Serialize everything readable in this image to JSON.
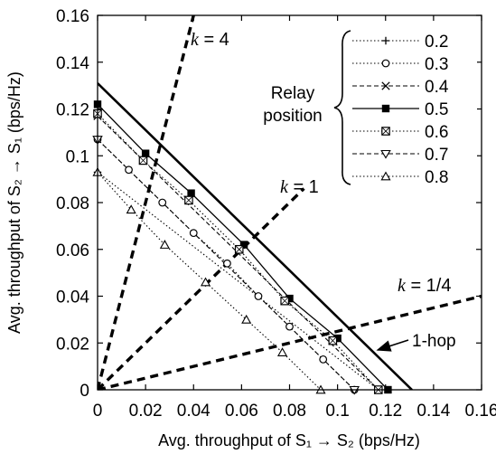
{
  "chart_data": {
    "type": "line",
    "xlabel": "Avg. throughput of S₁ → S₂ (bps/Hz)",
    "ylabel": "Avg. throughput of S₂ → S₁ (bps/Hz)",
    "xlim": [
      0,
      0.16
    ],
    "ylim": [
      0,
      0.16
    ],
    "xticks": [
      "0",
      "0.02",
      "0.04",
      "0.06",
      "0.08",
      "0.1",
      "0.12",
      "0.14",
      "0.16"
    ],
    "yticks": [
      "0",
      "0.02",
      "0.04",
      "0.06",
      "0.08",
      "0.1",
      "0.12",
      "0.14",
      "0.16"
    ],
    "grid": false,
    "legend_title": "Relay position",
    "legend_position": "top-right",
    "series": [
      {
        "name": "0.2",
        "marker": "plus",
        "style": "dotted",
        "points": [
          [
            0,
            0.093
          ],
          [
            0.117,
            0
          ]
        ]
      },
      {
        "name": "0.3",
        "marker": "circle",
        "style": "dotted",
        "points": [
          [
            0,
            0.107
          ],
          [
            0.013,
            0.094
          ],
          [
            0.027,
            0.08
          ],
          [
            0.04,
            0.067
          ],
          [
            0.054,
            0.054
          ],
          [
            0.067,
            0.04
          ],
          [
            0.08,
            0.027
          ],
          [
            0.094,
            0.013
          ],
          [
            0.107,
            0
          ]
        ]
      },
      {
        "name": "0.4",
        "marker": "cross",
        "style": "dashed",
        "points": [
          [
            0,
            0.117
          ],
          [
            0.117,
            0
          ]
        ]
      },
      {
        "name": "0.5",
        "marker": "square-filled",
        "style": "solid",
        "points": [
          [
            0,
            0.122
          ],
          [
            0.02,
            0.101
          ],
          [
            0.039,
            0.084
          ],
          [
            0.061,
            0.062
          ],
          [
            0.08,
            0.039
          ],
          [
            0.1,
            0.022
          ],
          [
            0.121,
            0
          ]
        ]
      },
      {
        "name": "0.6",
        "marker": "square-open",
        "style": "dotted",
        "points": [
          [
            0,
            0.118
          ],
          [
            0.019,
            0.098
          ],
          [
            0.038,
            0.081
          ],
          [
            0.059,
            0.06
          ],
          [
            0.078,
            0.038
          ],
          [
            0.098,
            0.021
          ],
          [
            0.117,
            0
          ]
        ]
      },
      {
        "name": "0.7",
        "marker": "triangle-down",
        "style": "dashed",
        "points": [
          [
            0,
            0.107
          ],
          [
            0.107,
            0
          ]
        ]
      },
      {
        "name": "0.8",
        "marker": "triangle-up",
        "style": "dotted",
        "points": [
          [
            0,
            0.093
          ],
          [
            0.014,
            0.077
          ],
          [
            0.028,
            0.062
          ],
          [
            0.045,
            0.046
          ],
          [
            0.062,
            0.03
          ],
          [
            0.077,
            0.016
          ],
          [
            0.093,
            0
          ]
        ]
      }
    ],
    "reference_lines": [
      {
        "name": "1-hop",
        "style": "solid-thick",
        "points": [
          [
            0,
            0.131
          ],
          [
            0.131,
            0
          ]
        ]
      },
      {
        "name": "k = 4",
        "style": "dashed-thick",
        "points": [
          [
            0,
            0
          ],
          [
            0.04,
            0.16
          ]
        ]
      },
      {
        "name": "k = 1",
        "style": "dashed-thick",
        "points": [
          [
            0,
            0
          ],
          [
            0.086,
            0.086
          ]
        ]
      },
      {
        "name": "k = 1/4",
        "style": "dashed-thick",
        "points": [
          [
            0,
            0
          ],
          [
            0.16,
            0.04
          ]
        ]
      }
    ],
    "annotations": [
      {
        "label": "k = 4",
        "math": "k",
        "rest": " = 4"
      },
      {
        "label": "k = 1",
        "math": "k",
        "rest": " = 1"
      },
      {
        "label": "k = 1/4",
        "math": "k",
        "rest": " = 1/4"
      },
      {
        "label": "1-hop",
        "arrow": true
      }
    ]
  }
}
